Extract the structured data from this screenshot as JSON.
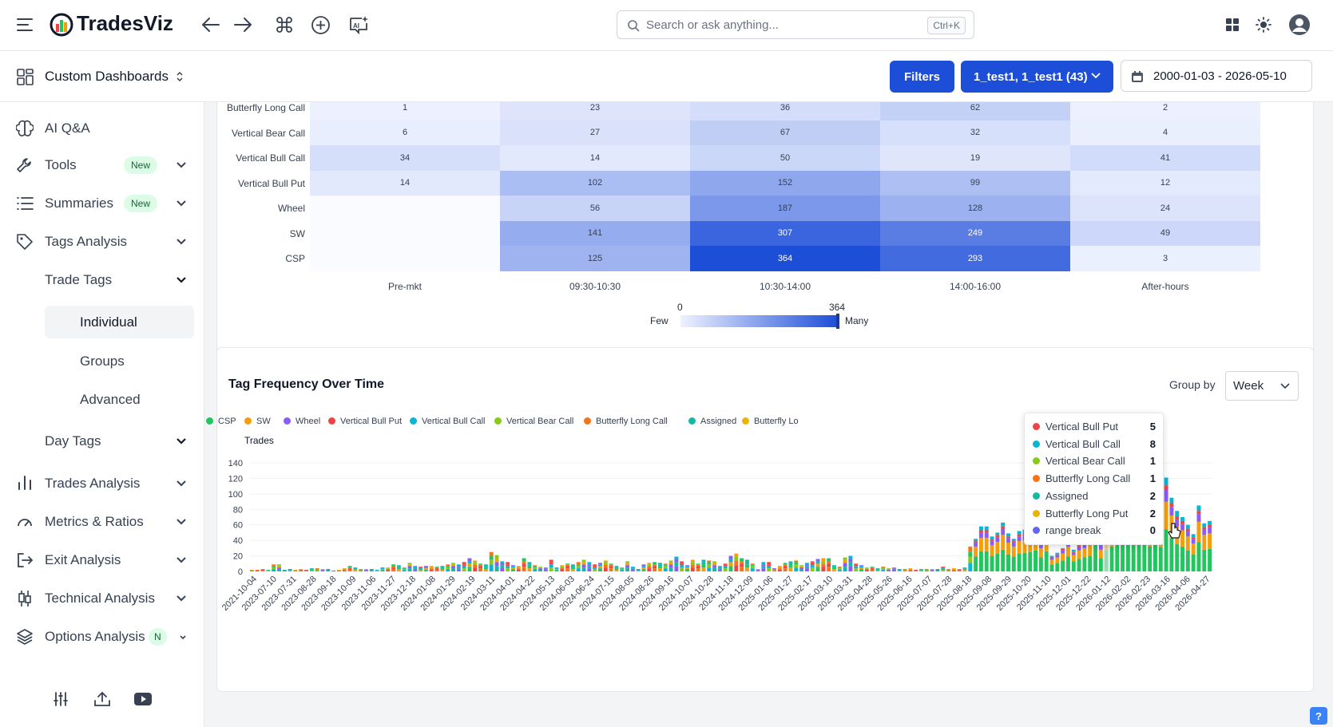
{
  "app": {
    "name": "TradesViz"
  },
  "search": {
    "placeholder": "Search or ask anything...",
    "shortcut": "Ctrl+K"
  },
  "dashboard": {
    "title": "Custom Dashboards"
  },
  "toolbar": {
    "filters_label": "Filters",
    "account_label": "1_test1, 1_test1 (43)",
    "date_range": "2000-01-03 - 2026-05-10"
  },
  "sidebar": {
    "items": [
      {
        "label": "AI Q&A",
        "icon": "brain-icon"
      },
      {
        "label": "Tools",
        "badge": "New",
        "icon": "wrench-icon"
      },
      {
        "label": "Summaries",
        "badge": "New",
        "icon": "list-icon"
      },
      {
        "label": "Tags Analysis",
        "icon": "tag-icon"
      },
      {
        "label": "Trade Tags"
      },
      {
        "label": "Individual"
      },
      {
        "label": "Groups"
      },
      {
        "label": "Advanced"
      },
      {
        "label": "Day Tags"
      },
      {
        "label": "Trades Analysis",
        "icon": "bar-chart-icon"
      },
      {
        "label": "Metrics & Ratios",
        "icon": "gauge-icon"
      },
      {
        "label": "Exit Analysis",
        "icon": "exit-icon"
      },
      {
        "label": "Technical Analysis",
        "icon": "candlestick-icon"
      },
      {
        "label": "Options Analysis",
        "badge": "N",
        "icon": "layers-icon"
      }
    ]
  },
  "heatmap": {
    "rows": [
      "Butterfly Long Call",
      "Vertical Bear Call",
      "Vertical Bull Call",
      "Vertical Bull Put",
      "Wheel",
      "SW",
      "CSP"
    ],
    "columns": [
      "Pre-mkt",
      "09:30-10:30",
      "10:30-14:00",
      "14:00-16:00",
      "After-hours"
    ],
    "values": [
      [
        "1",
        "23",
        "36",
        "62",
        "2"
      ],
      [
        "6",
        "27",
        "67",
        "32",
        "4"
      ],
      [
        "34",
        "14",
        "50",
        "19",
        "41"
      ],
      [
        "14",
        "102",
        "152",
        "99",
        "12"
      ],
      [
        "",
        "56",
        "187",
        "128",
        "24"
      ],
      [
        "",
        "141",
        "307",
        "249",
        "49"
      ],
      [
        "",
        "125",
        "364",
        "293",
        "3"
      ]
    ],
    "scale_min": "0",
    "scale_max": "364",
    "few_label": "Few",
    "many_label": "Many",
    "max_value": 364
  },
  "tag_chart": {
    "title": "Tag Frequency Over Time",
    "group_by_label": "Group by",
    "group_by_value": "Week",
    "y_axis_title": "Trades",
    "legend": [
      {
        "name": "CSP",
        "color": "#22c55e"
      },
      {
        "name": "SW",
        "color": "#f59e0b"
      },
      {
        "name": "Wheel",
        "color": "#8b5cf6"
      },
      {
        "name": "Vertical Bull Put",
        "color": "#ef4444"
      },
      {
        "name": "Vertical Bull Call",
        "color": "#06b6d4"
      },
      {
        "name": "Vertical Bear Call",
        "color": "#84cc16"
      },
      {
        "name": "Butterfly Long Call",
        "color": "#f97316"
      },
      {
        "name": "Assigned",
        "color": "#14b8a6"
      },
      {
        "name": "Butterfly Lo",
        "color": "#eab308"
      }
    ],
    "tooltip": [
      {
        "name": "Vertical Bull Put",
        "value": "5",
        "color": "#ef4444"
      },
      {
        "name": "Vertical Bull Call",
        "value": "8",
        "color": "#06b6d4"
      },
      {
        "name": "Vertical Bear Call",
        "value": "1",
        "color": "#84cc16"
      },
      {
        "name": "Butterfly Long Call",
        "value": "1",
        "color": "#f97316"
      },
      {
        "name": "Assigned",
        "value": "2",
        "color": "#14b8a6"
      },
      {
        "name": "Butterfly Long Put",
        "value": "2",
        "color": "#eab308"
      },
      {
        "name": "range break",
        "value": "0",
        "color": "#6366f1"
      }
    ]
  },
  "chart_data": {
    "type": "bar",
    "stacked": true,
    "title": "Tag Frequency Over Time",
    "ylabel": "Trades",
    "ylim": [
      0,
      140
    ],
    "yticks": [
      "0",
      "20",
      "40",
      "60",
      "80",
      "100",
      "120",
      "140"
    ],
    "x_tick_labels": [
      "2021-10-04",
      "2023-07-10",
      "2023-07-31",
      "2023-08-28",
      "2023-09-18",
      "2023-10-09",
      "2023-11-06",
      "2023-11-27",
      "2023-12-18",
      "2024-01-08",
      "2024-01-29",
      "2024-02-19",
      "2024-03-11",
      "2024-04-01",
      "2024-04-22",
      "2024-05-13",
      "2024-06-03",
      "2024-06-24",
      "2024-07-15",
      "2024-08-05",
      "2024-08-26",
      "2024-09-16",
      "2024-10-07",
      "2024-10-28",
      "2024-11-18",
      "2024-12-09",
      "2025-01-06",
      "2025-01-27",
      "2025-02-17",
      "2025-03-10",
      "2025-03-31",
      "2025-04-28",
      "2025-05-26",
      "2025-06-16",
      "2025-07-07",
      "2025-07-28",
      "2025-08-18",
      "2025-09-08",
      "2025-09-29",
      "2025-10-20",
      "2025-11-10",
      "2025-12-01",
      "2025-12-22",
      "2026-01-12",
      "2026-02-02",
      "2026-02-23",
      "2026-03-16",
      "2026-04-06",
      "2026-04-27"
    ],
    "bar_totals": [
      2,
      2,
      3,
      2,
      9,
      9,
      2,
      3,
      2,
      3,
      2,
      4,
      4,
      3,
      3,
      1,
      2,
      4,
      7,
      5,
      3,
      3,
      3,
      2,
      5,
      5,
      9,
      8,
      5,
      11,
      7,
      6,
      7,
      7,
      6,
      7,
      9,
      11,
      9,
      12,
      17,
      14,
      10,
      9,
      25,
      21,
      13,
      12,
      8,
      7,
      17,
      12,
      8,
      6,
      5,
      15,
      5,
      8,
      10,
      9,
      12,
      15,
      12,
      9,
      11,
      14,
      10,
      7,
      5,
      13,
      6,
      3,
      9,
      11,
      12,
      11,
      10,
      14,
      19,
      13,
      8,
      15,
      10,
      15,
      14,
      13,
      7,
      10,
      20,
      23,
      17,
      15,
      10,
      3,
      12,
      12,
      4,
      7,
      11,
      13,
      14,
      8,
      11,
      13,
      16,
      17,
      17,
      8,
      6,
      18,
      20,
      10,
      8,
      5,
      6,
      4,
      6,
      4,
      5,
      3,
      3,
      4,
      2,
      3,
      3,
      3,
      3,
      6,
      3,
      4,
      3,
      5,
      32,
      42,
      58,
      58,
      45,
      50,
      63,
      49,
      42,
      52,
      54,
      55,
      61,
      40,
      58,
      20,
      24,
      30,
      42,
      28,
      36,
      40,
      45,
      78,
      38,
      60,
      70,
      75,
      95,
      100,
      115,
      117,
      98,
      70,
      90,
      68,
      121,
      95,
      78,
      70,
      60,
      48,
      85,
      62,
      65
    ],
    "series_colors": {
      "CSP": "#22c55e",
      "SW": "#f59e0b",
      "Wheel": "#8b5cf6",
      "Vertical Bull Put": "#ef4444",
      "Vertical Bull Call": "#06b6d4",
      "Vertical Bear Call": "#84cc16",
      "Butterfly Long Call": "#f97316",
      "Assigned": "#14b8a6"
    }
  }
}
